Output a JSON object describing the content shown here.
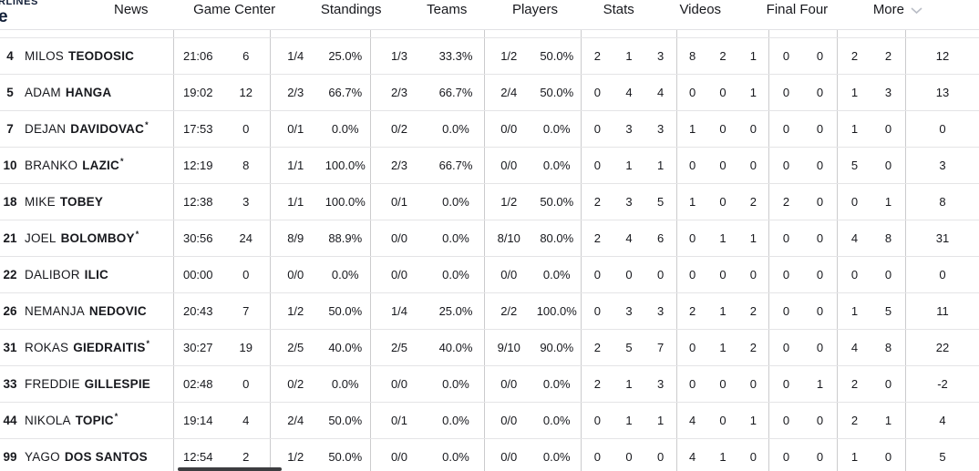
{
  "colors": {
    "brand_navy": "#121f38",
    "text": "#17181d",
    "row_border": "#e4e4e6",
    "column_border": "#cbcbcd",
    "chevron_gray": "#b9bdc6",
    "scrollbar_thumb": "#3d3d40"
  },
  "nav": {
    "logo_fragment": {
      "line1": "RLINES",
      "line2": "e"
    },
    "items": [
      {
        "label": "News"
      },
      {
        "label": "Game Center"
      },
      {
        "label": "Standings"
      },
      {
        "label": "Teams"
      },
      {
        "label": "Players"
      },
      {
        "label": "Stats"
      },
      {
        "label": "Videos"
      },
      {
        "label": "Final Four"
      },
      {
        "label": "More",
        "has_chevron": true
      }
    ]
  },
  "table": {
    "starter_mark": "*",
    "rows": [
      {
        "number": "4",
        "first": "MILOS",
        "last": "TEODOSIC",
        "starter": false,
        "min": "21:06",
        "pts": "6",
        "fg2": "1/4",
        "fg2_pct": "25.0%",
        "fg3": "1/3",
        "fg3_pct": "33.3%",
        "ft": "1/2",
        "ft_pct": "50.0%",
        "reb_o": "2",
        "reb_d": "1",
        "reb_t": "3",
        "ast": "8",
        "stl": "2",
        "tov": "1",
        "blk_fv": "0",
        "blk_ag": "0",
        "fls_cm": "2",
        "fls_rv": "2",
        "pir": "12"
      },
      {
        "number": "5",
        "first": "ADAM",
        "last": "HANGA",
        "starter": false,
        "min": "19:02",
        "pts": "12",
        "fg2": "2/3",
        "fg2_pct": "66.7%",
        "fg3": "2/3",
        "fg3_pct": "66.7%",
        "ft": "2/4",
        "ft_pct": "50.0%",
        "reb_o": "0",
        "reb_d": "4",
        "reb_t": "4",
        "ast": "0",
        "stl": "0",
        "tov": "1",
        "blk_fv": "0",
        "blk_ag": "0",
        "fls_cm": "1",
        "fls_rv": "3",
        "pir": "13"
      },
      {
        "number": "7",
        "first": "DEJAN",
        "last": "DAVIDOVAC",
        "starter": true,
        "min": "17:53",
        "pts": "0",
        "fg2": "0/1",
        "fg2_pct": "0.0%",
        "fg3": "0/2",
        "fg3_pct": "0.0%",
        "ft": "0/0",
        "ft_pct": "0.0%",
        "reb_o": "0",
        "reb_d": "3",
        "reb_t": "3",
        "ast": "1",
        "stl": "0",
        "tov": "0",
        "blk_fv": "0",
        "blk_ag": "0",
        "fls_cm": "1",
        "fls_rv": "0",
        "pir": "0"
      },
      {
        "number": "10",
        "first": "BRANKO",
        "last": "LAZIC",
        "starter": true,
        "min": "12:19",
        "pts": "8",
        "fg2": "1/1",
        "fg2_pct": "100.0%",
        "fg3": "2/3",
        "fg3_pct": "66.7%",
        "ft": "0/0",
        "ft_pct": "0.0%",
        "reb_o": "0",
        "reb_d": "1",
        "reb_t": "1",
        "ast": "0",
        "stl": "0",
        "tov": "0",
        "blk_fv": "0",
        "blk_ag": "0",
        "fls_cm": "5",
        "fls_rv": "0",
        "pir": "3"
      },
      {
        "number": "18",
        "first": "MIKE",
        "last": "TOBEY",
        "starter": false,
        "min": "12:38",
        "pts": "3",
        "fg2": "1/1",
        "fg2_pct": "100.0%",
        "fg3": "0/1",
        "fg3_pct": "0.0%",
        "ft": "1/2",
        "ft_pct": "50.0%",
        "reb_o": "2",
        "reb_d": "3",
        "reb_t": "5",
        "ast": "1",
        "stl": "0",
        "tov": "2",
        "blk_fv": "2",
        "blk_ag": "0",
        "fls_cm": "0",
        "fls_rv": "1",
        "pir": "8"
      },
      {
        "number": "21",
        "first": "JOEL",
        "last": "BOLOMBOY",
        "starter": true,
        "min": "30:56",
        "pts": "24",
        "fg2": "8/9",
        "fg2_pct": "88.9%",
        "fg3": "0/0",
        "fg3_pct": "0.0%",
        "ft": "8/10",
        "ft_pct": "80.0%",
        "reb_o": "2",
        "reb_d": "4",
        "reb_t": "6",
        "ast": "0",
        "stl": "1",
        "tov": "1",
        "blk_fv": "0",
        "blk_ag": "0",
        "fls_cm": "4",
        "fls_rv": "8",
        "pir": "31"
      },
      {
        "number": "22",
        "first": "DALIBOR",
        "last": "ILIC",
        "starter": false,
        "min": "00:00",
        "pts": "0",
        "fg2": "0/0",
        "fg2_pct": "0.0%",
        "fg3": "0/0",
        "fg3_pct": "0.0%",
        "ft": "0/0",
        "ft_pct": "0.0%",
        "reb_o": "0",
        "reb_d": "0",
        "reb_t": "0",
        "ast": "0",
        "stl": "0",
        "tov": "0",
        "blk_fv": "0",
        "blk_ag": "0",
        "fls_cm": "0",
        "fls_rv": "0",
        "pir": "0"
      },
      {
        "number": "26",
        "first": "NEMANJA",
        "last": "NEDOVIC",
        "starter": false,
        "min": "20:43",
        "pts": "7",
        "fg2": "1/2",
        "fg2_pct": "50.0%",
        "fg3": "1/4",
        "fg3_pct": "25.0%",
        "ft": "2/2",
        "ft_pct": "100.0%",
        "reb_o": "0",
        "reb_d": "3",
        "reb_t": "3",
        "ast": "2",
        "stl": "1",
        "tov": "2",
        "blk_fv": "0",
        "blk_ag": "0",
        "fls_cm": "1",
        "fls_rv": "5",
        "pir": "11"
      },
      {
        "number": "31",
        "first": "ROKAS",
        "last": "GIEDRAITIS",
        "starter": true,
        "min": "30:27",
        "pts": "19",
        "fg2": "2/5",
        "fg2_pct": "40.0%",
        "fg3": "2/5",
        "fg3_pct": "40.0%",
        "ft": "9/10",
        "ft_pct": "90.0%",
        "reb_o": "2",
        "reb_d": "5",
        "reb_t": "7",
        "ast": "0",
        "stl": "1",
        "tov": "2",
        "blk_fv": "0",
        "blk_ag": "0",
        "fls_cm": "4",
        "fls_rv": "8",
        "pir": "22"
      },
      {
        "number": "33",
        "first": "FREDDIE",
        "last": "GILLESPIE",
        "starter": false,
        "min": "02:48",
        "pts": "0",
        "fg2": "0/2",
        "fg2_pct": "0.0%",
        "fg3": "0/0",
        "fg3_pct": "0.0%",
        "ft": "0/0",
        "ft_pct": "0.0%",
        "reb_o": "2",
        "reb_d": "1",
        "reb_t": "3",
        "ast": "0",
        "stl": "0",
        "tov": "0",
        "blk_fv": "0",
        "blk_ag": "1",
        "fls_cm": "2",
        "fls_rv": "0",
        "pir": "-2"
      },
      {
        "number": "44",
        "first": "NIKOLA",
        "last": "TOPIC",
        "starter": true,
        "min": "19:14",
        "pts": "4",
        "fg2": "2/4",
        "fg2_pct": "50.0%",
        "fg3": "0/1",
        "fg3_pct": "0.0%",
        "ft": "0/0",
        "ft_pct": "0.0%",
        "reb_o": "0",
        "reb_d": "1",
        "reb_t": "1",
        "ast": "4",
        "stl": "0",
        "tov": "1",
        "blk_fv": "0",
        "blk_ag": "0",
        "fls_cm": "2",
        "fls_rv": "1",
        "pir": "4"
      },
      {
        "number": "99",
        "first": "YAGO",
        "last": "DOS SANTOS",
        "starter": false,
        "min": "12:54",
        "pts": "2",
        "fg2": "1/2",
        "fg2_pct": "50.0%",
        "fg3": "0/0",
        "fg3_pct": "0.0%",
        "ft": "0/0",
        "ft_pct": "0.0%",
        "reb_o": "0",
        "reb_d": "0",
        "reb_t": "0",
        "ast": "4",
        "stl": "1",
        "tov": "0",
        "blk_fv": "0",
        "blk_ag": "0",
        "fls_cm": "1",
        "fls_rv": "0",
        "pir": "5"
      }
    ]
  }
}
